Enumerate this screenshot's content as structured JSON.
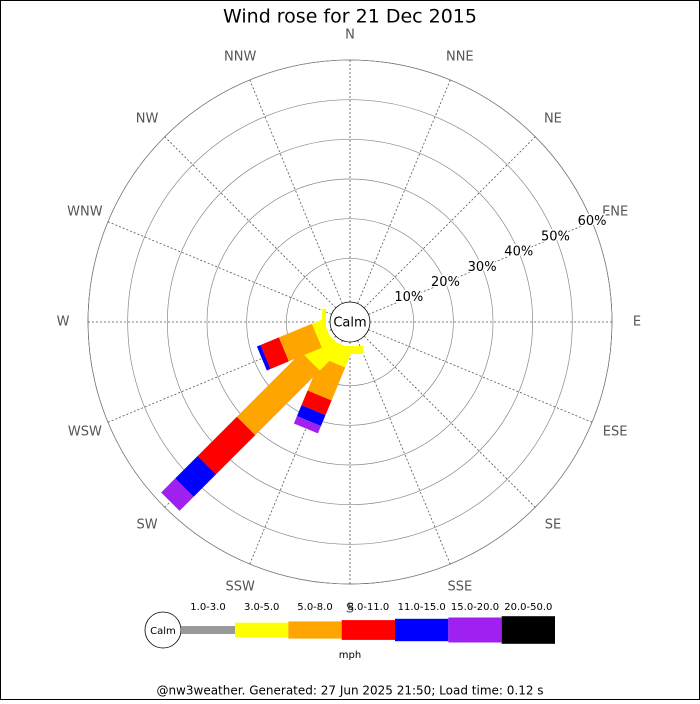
{
  "chart_data": {
    "type": "wind_rose",
    "title": "Wind rose for 21 Dec 2015",
    "directions": [
      "N",
      "NNE",
      "NE",
      "ENE",
      "E",
      "ESE",
      "SE",
      "SSE",
      "S",
      "SSW",
      "SW",
      "WSW",
      "W",
      "WNW",
      "NW",
      "NNW"
    ],
    "rlim": [
      0,
      60
    ],
    "rticks": [
      {
        "value": 10,
        "label": "10%"
      },
      {
        "value": 20,
        "label": "20%"
      },
      {
        "value": 30,
        "label": "30%"
      },
      {
        "value": 40,
        "label": "40%"
      },
      {
        "value": 50,
        "label": "50%"
      },
      {
        "value": 60,
        "label": "60%"
      }
    ],
    "calm_label": "Calm",
    "unit": "mph",
    "series": [
      {
        "name": "1.0-3.0",
        "color": "#999999",
        "values": [
          0,
          0,
          0,
          0,
          0,
          0,
          0,
          0,
          0,
          0,
          0,
          0,
          0,
          0,
          0,
          0
        ]
      },
      {
        "name": "3.0-5.0",
        "color": "#ffff00",
        "values": [
          0,
          0,
          0,
          0,
          0,
          0,
          0,
          0,
          2,
          5,
          8,
          3,
          1,
          0,
          0,
          0
        ]
      },
      {
        "name": "5.0-8.0",
        "color": "#ffa500",
        "values": [
          0,
          0,
          0,
          0,
          0,
          0,
          0,
          0,
          0,
          9,
          23,
          9,
          0,
          0,
          0,
          0
        ]
      },
      {
        "name": "8.0-11.0",
        "color": "#ff0000",
        "values": [
          0,
          0,
          0,
          0,
          0,
          0,
          0,
          0,
          0,
          4,
          14,
          5,
          0,
          0,
          0,
          0
        ]
      },
      {
        "name": "11.0-15.0",
        "color": "#0000ff",
        "values": [
          0,
          0,
          0,
          0,
          0,
          0,
          0,
          0,
          0,
          3,
          8,
          1,
          0,
          0,
          0,
          0
        ]
      },
      {
        "name": "15.0-20.0",
        "color": "#a020f0",
        "values": [
          0,
          0,
          0,
          0,
          0,
          0,
          0,
          0,
          0,
          2,
          5,
          0,
          0,
          0,
          0,
          0
        ]
      },
      {
        "name": "20.0-50.0",
        "color": "#000000",
        "values": [
          0,
          0,
          0,
          0,
          0,
          0,
          0,
          0,
          0,
          0,
          0,
          0,
          0,
          0,
          0,
          0
        ]
      }
    ]
  },
  "footer": "@nw3weather. Generated: 27 Jun 2025 21:50; Load time: 0.12 s"
}
